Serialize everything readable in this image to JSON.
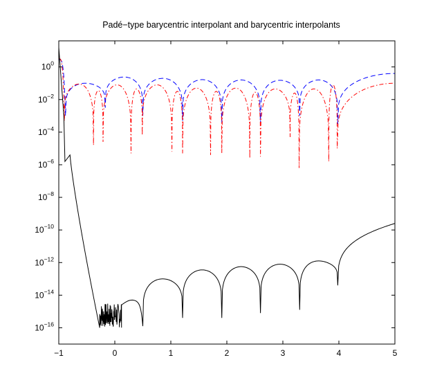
{
  "chart_data": {
    "type": "line",
    "title": "Padé−type barycentric interpolant and barycentric interpolants",
    "xlabel": "",
    "ylabel": "",
    "xlim": [
      -1,
      5
    ],
    "ylim_log10": [
      -17,
      1.6
    ],
    "y_scale": "log",
    "x_ticks": [
      {
        "label": "−1",
        "value": -1
      },
      {
        "label": "0",
        "value": 0
      },
      {
        "label": "1",
        "value": 1
      },
      {
        "label": "2",
        "value": 2
      },
      {
        "label": "3",
        "value": 3
      },
      {
        "label": "4",
        "value": 4
      },
      {
        "label": "5",
        "value": 5
      }
    ],
    "y_ticks": [
      {
        "base": "10",
        "exp": "0",
        "value": 1
      },
      {
        "base": "10",
        "exp": "−2",
        "value": 0.01
      },
      {
        "base": "10",
        "exp": "−4",
        "value": 0.0001
      },
      {
        "base": "10",
        "exp": "−6",
        "value": 1e-06
      },
      {
        "base": "10",
        "exp": "−8",
        "value": 1e-08
      },
      {
        "base": "10",
        "exp": "−10",
        "value": 1e-10
      },
      {
        "base": "10",
        "exp": "−12",
        "value": 1e-12
      },
      {
        "base": "10",
        "exp": "−14",
        "value": 1e-14
      },
      {
        "base": "10",
        "exp": "−16",
        "value": 1e-16
      }
    ],
    "grid": false,
    "legend": "none",
    "series": [
      {
        "color": "#0000ff",
        "dash": "dashed",
        "dips_x": [
          -0.88,
          -0.17,
          0.5,
          1.21,
          1.91,
          2.6,
          3.3,
          3.98
        ],
        "dip_floor_log10": [
          -3.0,
          -2.5,
          -3.0,
          -3.3,
          -3.4,
          -3.5,
          -3.0,
          -3.5
        ],
        "arch_peaks_log10": [
          -1.0,
          -0.62,
          -0.7,
          -0.78,
          -0.8,
          -0.82,
          -0.8,
          -0.5
        ],
        "end_values_log10": [
          0.45,
          -0.4
        ]
      },
      {
        "color": "#ff0000",
        "dash": "dash-dot",
        "dips_x": [
          -0.9,
          -0.38,
          -0.21,
          0.29,
          0.49,
          1.02,
          1.21,
          1.71,
          1.91,
          2.41,
          2.6,
          3.13,
          3.29,
          3.82,
          3.97
        ],
        "dip_floor_log10": [
          -3.3,
          -4.8,
          -4.6,
          -5.3,
          -4.2,
          -5.2,
          -5.3,
          -5.4,
          -5.3,
          -5.6,
          -5.5,
          -4.3,
          -6.2,
          -5.8,
          -5.0
        ],
        "arch_peaks_log10": [
          -1.05,
          -1.45,
          -1.1,
          -1.35,
          -1.1,
          -1.5,
          -1.3,
          -1.5,
          -1.3,
          -1.55,
          -1.35,
          -1.6,
          -1.35,
          -1.1,
          -1.0
        ],
        "end_values_log10": [
          0.5,
          -1.0
        ]
      },
      {
        "color": "#000000",
        "dash": "solid",
        "peak_near_x": -0.8,
        "peak_log10": -5.4,
        "noise_band_x": [
          -0.27,
          0.12
        ],
        "noise_band_log10": [
          -16.0,
          -14.5
        ],
        "dips_x": [
          0.5,
          1.21,
          1.91,
          2.6,
          3.3,
          3.98
        ],
        "dip_floor_log10": [
          -15.9,
          -15.4,
          -15.4,
          -15.1,
          -14.9,
          -13.4
        ],
        "arch_peaks_log10": [
          -13.0,
          -12.45,
          -12.25,
          -12.1,
          -11.9
        ],
        "end_values_log10": [
          1.2,
          -9.6
        ]
      }
    ]
  }
}
